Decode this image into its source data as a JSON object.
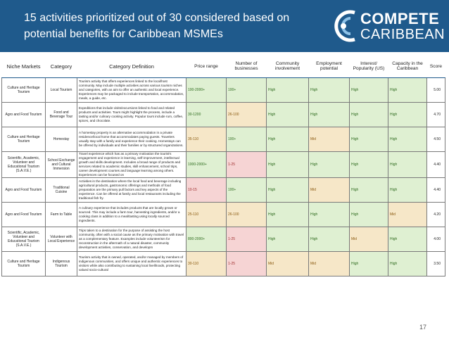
{
  "slide": {
    "title": "15 activities prioritized out of 30 considered based on potential benefits for Caribbean MSMEs",
    "logo": {
      "line1": "COMPETE",
      "line2": "CARIBBEAN"
    },
    "page_number": "17",
    "header_bg": "#1f5a8c"
  },
  "table": {
    "headers": [
      "Niche Markets",
      "Category",
      "Category Definition",
      "Price range",
      "Number of businesses",
      "Community involvement",
      "Employment potential",
      "Interest/ Popularity (US)",
      "Capacity in the Caribbean",
      "Score"
    ],
    "rows": [
      {
        "niche": "Culture and Heritage Tourism",
        "category": "Local Tourism",
        "definition": "Tourism activity that offers experiences linked to the local/host community. May include multiple activities across various tourism niches and categories, with an aim to offer an authentic and local experience. Experiences may be packaged to include transportation, accommodation, meals, a guide, etc.",
        "price": "100-2000+",
        "businesses": "100+",
        "community": "High",
        "employment": "High",
        "interest": "High",
        "capacity": "High",
        "score": "5.00"
      },
      {
        "niche": "Agro and Food Tourism",
        "category": "Food and Beverage Tour",
        "definition": "Expeditions that include visits/excursions linked to food and related products and activities. Tours might highlight the process, include a tasting and/or culinary cooking activity. Popular tours include rum, coffee, spices, and chocolate.",
        "price": "30-1200",
        "businesses": "26-100",
        "community": "High",
        "employment": "High",
        "interest": "High",
        "capacity": "High",
        "score": "4.70"
      },
      {
        "niche": "Culture and Heritage Tourism",
        "category": "Homestay",
        "definition": "A homestay property is an alternative accommodation in a private residence/local home that accommodates paying guests. Travelers usually stay with a family and experience their cooking. Homestays can be offered by individuals and their families or by structured organizations.",
        "price": "35-110",
        "businesses": "100+",
        "community": "High",
        "employment": "Mid",
        "interest": "High",
        "capacity": "High",
        "score": "4.50"
      },
      {
        "niche": "Scientific, Academic, Volunteer and Educational Tourism (S.A.V.E.)",
        "category": "School Exchange and Cultural Immersion",
        "definition": "Travel experience which has as a primary motivation the tourist's engagement and experience in learning, self-improvement, intellectual growth and skills development. Includes a broad range of products and services related to academic studies, skill enhancement, school trips, career development courses and language learning among others. Experiences can be focused on",
        "price": "1000-2000+",
        "businesses": "1-25",
        "community": "High",
        "employment": "High",
        "interest": "High",
        "capacity": "High",
        "score": "4.40"
      },
      {
        "niche": "Agro and Food Tourism",
        "category": "Traditional Cuisine",
        "definition": "Activities in the destination where the local food and beverage including agricultural products, gastronomic offerings and methods of food preparation are the primary pull factors and key aspects of the experience. Can be offered at family and local restaurants including the traditional fish fry.",
        "price": "10-15",
        "businesses": "100+",
        "community": "High",
        "employment": "Mid",
        "interest": "High",
        "capacity": "High",
        "score": "4.40"
      },
      {
        "niche": "Agro and Food Tourism",
        "category": "Farm to Table",
        "definition": "A culinary experience that includes products that are locally grown or sourced. This may include a farm tour, harvesting ingredients, and/or a cooking class in addition to a meal/tasting using locally sourced ingredients.",
        "price": "25-110",
        "businesses": "26-100",
        "community": "High",
        "employment": "High",
        "interest": "High",
        "capacity": "Mid",
        "score": "4.20"
      },
      {
        "niche": "Scientific, Academic, Volunteer and Educational Tourism (S.A.V.E.)",
        "category": "Volunteer with Local Experience",
        "definition": "Trips taken to a destination for the purpose of assisting the host community, often with a social cause as the primary motivation with travel as a complementary feature. Examples include volunteerism for reconstruction in the aftermath of a natural disaster, community development activities, conservation, and developm",
        "price": "800-2000+",
        "businesses": "1-25",
        "community": "High",
        "employment": "High",
        "interest": "Mid",
        "capacity": "High",
        "score": "4.00"
      },
      {
        "niche": "Culture and Heritage Tourism",
        "category": "Indigenous Tourism",
        "definition": "Tourism activity that is owned, operated, and/or managed by members of indigenous communities, and offers unique and authentic experiences to visitors while also contributing to sustaining local livelihoods, protecting valued socio-cultural",
        "price": "30-110",
        "businesses": "1-25",
        "community": "Mid",
        "employment": "Mid",
        "interest": "High",
        "capacity": "High",
        "score": "3.50"
      }
    ]
  }
}
